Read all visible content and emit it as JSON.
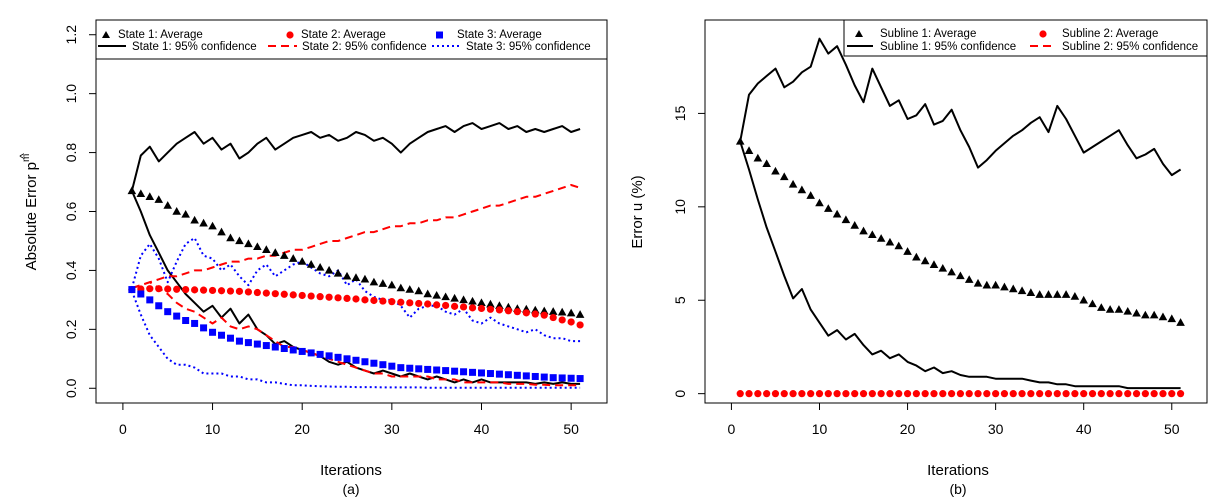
{
  "chart_data": [
    {
      "type": "line",
      "id": "a",
      "caption": "(a)",
      "xlabel": "Iterations",
      "ylabel": "Absolute Error p^m",
      "ylabel_base": "Absolute Error p",
      "ylabel_accent": "^",
      "ylabel_sup": "m",
      "xlim": [
        -3,
        54
      ],
      "ylim": [
        -0.05,
        1.25
      ],
      "xticks": [
        0,
        10,
        20,
        30,
        40,
        50
      ],
      "yticks": [
        0.0,
        0.2,
        0.4,
        0.6,
        0.8,
        1.0,
        1.2
      ],
      "ytick_labels": [
        "0.0",
        "0.2",
        "0.4",
        "0.6",
        "0.8",
        "1.0",
        "1.2"
      ],
      "x": [
        1,
        2,
        3,
        4,
        5,
        6,
        7,
        8,
        9,
        10,
        11,
        12,
        13,
        14,
        15,
        16,
        17,
        18,
        19,
        20,
        21,
        22,
        23,
        24,
        25,
        26,
        27,
        28,
        29,
        30,
        31,
        32,
        33,
        34,
        35,
        36,
        37,
        38,
        39,
        40,
        41,
        42,
        43,
        44,
        45,
        46,
        47,
        48,
        49,
        50,
        51
      ],
      "legend": {
        "placement": "top",
        "columns": 3,
        "entries": [
          {
            "label": "State 1: Average",
            "color": "#000000",
            "kind": "marker",
            "marker": "triangle"
          },
          {
            "label": "State 2: Average",
            "color": "#ff0000",
            "kind": "marker",
            "marker": "circle"
          },
          {
            "label": "State 3: Average",
            "color": "#0000ff",
            "kind": "marker",
            "marker": "square"
          },
          {
            "label": "State 1: 95% confidence",
            "color": "#000000",
            "kind": "line",
            "dash": "solid"
          },
          {
            "label": "State 2: 95% confidence",
            "color": "#ff0000",
            "kind": "line",
            "dash": "dashed"
          },
          {
            "label": "State 3: 95% confidence",
            "color": "#0000ff",
            "kind": "line",
            "dash": "dotted"
          }
        ]
      },
      "series": [
        {
          "name": "State 1: Average",
          "color": "#000000",
          "kind": "marker",
          "marker": "triangle",
          "values": [
            0.67,
            0.66,
            0.65,
            0.64,
            0.62,
            0.6,
            0.59,
            0.57,
            0.56,
            0.55,
            0.53,
            0.51,
            0.5,
            0.49,
            0.48,
            0.47,
            0.46,
            0.45,
            0.44,
            0.43,
            0.42,
            0.41,
            0.4,
            0.39,
            0.38,
            0.375,
            0.37,
            0.36,
            0.355,
            0.35,
            0.34,
            0.335,
            0.33,
            0.32,
            0.315,
            0.31,
            0.305,
            0.3,
            0.295,
            0.29,
            0.285,
            0.28,
            0.275,
            0.27,
            0.268,
            0.265,
            0.262,
            0.26,
            0.258,
            0.255,
            0.25
          ]
        },
        {
          "name": "State 2: Average",
          "color": "#ff0000",
          "kind": "marker",
          "marker": "circle",
          "values": [
            0.335,
            0.337,
            0.338,
            0.338,
            0.337,
            0.336,
            0.335,
            0.334,
            0.333,
            0.332,
            0.331,
            0.33,
            0.329,
            0.327,
            0.325,
            0.323,
            0.321,
            0.319,
            0.317,
            0.315,
            0.313,
            0.311,
            0.309,
            0.307,
            0.305,
            0.303,
            0.3,
            0.298,
            0.296,
            0.294,
            0.292,
            0.29,
            0.288,
            0.286,
            0.283,
            0.281,
            0.278,
            0.276,
            0.273,
            0.271,
            0.268,
            0.266,
            0.263,
            0.26,
            0.256,
            0.252,
            0.248,
            0.24,
            0.232,
            0.225,
            0.215
          ]
        },
        {
          "name": "State 3: Average",
          "color": "#0000ff",
          "kind": "marker",
          "marker": "square",
          "values": [
            0.335,
            0.32,
            0.3,
            0.28,
            0.26,
            0.245,
            0.23,
            0.22,
            0.205,
            0.19,
            0.18,
            0.17,
            0.16,
            0.155,
            0.15,
            0.145,
            0.14,
            0.135,
            0.13,
            0.125,
            0.12,
            0.115,
            0.11,
            0.105,
            0.1,
            0.095,
            0.09,
            0.085,
            0.08,
            0.075,
            0.07,
            0.068,
            0.066,
            0.064,
            0.062,
            0.06,
            0.058,
            0.056,
            0.054,
            0.052,
            0.05,
            0.048,
            0.046,
            0.044,
            0.042,
            0.04,
            0.038,
            0.036,
            0.035,
            0.034,
            0.033
          ]
        },
        {
          "name": "State 1: 95% confidence upper",
          "color": "#000000",
          "kind": "line",
          "dash": "solid",
          "values": [
            0.67,
            0.79,
            0.82,
            0.77,
            0.8,
            0.83,
            0.85,
            0.87,
            0.83,
            0.85,
            0.81,
            0.83,
            0.78,
            0.8,
            0.83,
            0.85,
            0.81,
            0.83,
            0.85,
            0.86,
            0.87,
            0.85,
            0.86,
            0.84,
            0.85,
            0.87,
            0.86,
            0.84,
            0.85,
            0.83,
            0.8,
            0.83,
            0.85,
            0.87,
            0.88,
            0.89,
            0.87,
            0.89,
            0.9,
            0.88,
            0.89,
            0.9,
            0.88,
            0.89,
            0.87,
            0.88,
            0.87,
            0.88,
            0.89,
            0.87,
            0.88
          ]
        },
        {
          "name": "State 1: 95% confidence lower",
          "color": "#000000",
          "kind": "line",
          "dash": "solid",
          "values": [
            0.67,
            0.6,
            0.52,
            0.46,
            0.4,
            0.36,
            0.32,
            0.29,
            0.26,
            0.28,
            0.24,
            0.27,
            0.22,
            0.25,
            0.2,
            0.18,
            0.15,
            0.16,
            0.14,
            0.13,
            0.12,
            0.11,
            0.09,
            0.08,
            0.09,
            0.07,
            0.06,
            0.05,
            0.06,
            0.05,
            0.04,
            0.05,
            0.04,
            0.03,
            0.04,
            0.03,
            0.02,
            0.03,
            0.02,
            0.03,
            0.02,
            0.02,
            0.02,
            0.02,
            0.02,
            0.015,
            0.02,
            0.015,
            0.02,
            0.015,
            0.015
          ]
        },
        {
          "name": "State 2: 95% confidence upper",
          "color": "#ff0000",
          "kind": "line",
          "dash": "dashed",
          "values": [
            0.34,
            0.35,
            0.36,
            0.37,
            0.38,
            0.38,
            0.39,
            0.4,
            0.4,
            0.41,
            0.42,
            0.43,
            0.43,
            0.44,
            0.44,
            0.45,
            0.45,
            0.46,
            0.47,
            0.47,
            0.48,
            0.49,
            0.5,
            0.5,
            0.51,
            0.52,
            0.53,
            0.53,
            0.54,
            0.55,
            0.55,
            0.56,
            0.56,
            0.57,
            0.57,
            0.58,
            0.58,
            0.59,
            0.6,
            0.61,
            0.62,
            0.62,
            0.63,
            0.64,
            0.65,
            0.65,
            0.66,
            0.67,
            0.68,
            0.69,
            0.68
          ]
        },
        {
          "name": "State 2: 95% confidence lower",
          "color": "#ff0000",
          "kind": "line",
          "dash": "dashed",
          "values": [
            0.34,
            0.35,
            0.36,
            0.34,
            0.32,
            0.29,
            0.27,
            0.26,
            0.24,
            0.22,
            0.24,
            0.21,
            0.2,
            0.21,
            0.2,
            0.18,
            0.16,
            0.14,
            0.14,
            0.13,
            0.12,
            0.11,
            0.1,
            0.09,
            0.08,
            0.07,
            0.06,
            0.05,
            0.05,
            0.04,
            0.04,
            0.04,
            0.04,
            0.04,
            0.03,
            0.03,
            0.03,
            0.02,
            0.02,
            0.02,
            0.02,
            0.02,
            0.015,
            0.015,
            0.015,
            0.012,
            0.012,
            0.01,
            0.01,
            0.01,
            0.01
          ]
        },
        {
          "name": "State 3: 95% confidence upper",
          "color": "#0000ff",
          "kind": "line",
          "dash": "dotted",
          "values": [
            0.34,
            0.45,
            0.49,
            0.44,
            0.36,
            0.43,
            0.49,
            0.51,
            0.45,
            0.44,
            0.4,
            0.42,
            0.38,
            0.35,
            0.4,
            0.42,
            0.38,
            0.4,
            0.42,
            0.43,
            0.41,
            0.39,
            0.38,
            0.4,
            0.35,
            0.37,
            0.33,
            0.31,
            0.3,
            0.3,
            0.28,
            0.24,
            0.27,
            0.28,
            0.28,
            0.26,
            0.25,
            0.27,
            0.23,
            0.22,
            0.24,
            0.22,
            0.21,
            0.2,
            0.19,
            0.2,
            0.18,
            0.17,
            0.17,
            0.16,
            0.16
          ]
        },
        {
          "name": "State 3: 95% confidence lower",
          "color": "#0000ff",
          "kind": "line",
          "dash": "dotted",
          "values": [
            0.33,
            0.25,
            0.18,
            0.14,
            0.1,
            0.08,
            0.08,
            0.07,
            0.05,
            0.05,
            0.05,
            0.04,
            0.04,
            0.03,
            0.03,
            0.02,
            0.02,
            0.015,
            0.01,
            0.01,
            0.008,
            0.007,
            0.006,
            0.005,
            0.005,
            0.004,
            0.004,
            0.004,
            0.003,
            0.003,
            0.003,
            0.003,
            0.003,
            0.002,
            0.002,
            0.002,
            0.002,
            0.002,
            0.002,
            0.002,
            0.002,
            0.002,
            0.002,
            0.002,
            0.002,
            0.002,
            0.002,
            0.002,
            0.002,
            0.002,
            0.002
          ]
        }
      ]
    },
    {
      "type": "line",
      "id": "b",
      "caption": "(b)",
      "xlabel": "Iterations",
      "ylabel": "Error u (%)",
      "xlim": [
        -3,
        54
      ],
      "ylim": [
        -0.5,
        20
      ],
      "xticks": [
        0,
        10,
        20,
        30,
        40,
        50
      ],
      "yticks": [
        0,
        5,
        10,
        15
      ],
      "ytick_labels": [
        "0",
        "5",
        "10",
        "15"
      ],
      "x": [
        1,
        2,
        3,
        4,
        5,
        6,
        7,
        8,
        9,
        10,
        11,
        12,
        13,
        14,
        15,
        16,
        17,
        18,
        19,
        20,
        21,
        22,
        23,
        24,
        25,
        26,
        27,
        28,
        29,
        30,
        31,
        32,
        33,
        34,
        35,
        36,
        37,
        38,
        39,
        40,
        41,
        42,
        43,
        44,
        45,
        46,
        47,
        48,
        49,
        50,
        51
      ],
      "legend": {
        "placement": "top-right",
        "columns": 2,
        "entries": [
          {
            "label": "Subline 1: Average",
            "color": "#000000",
            "kind": "marker",
            "marker": "triangle"
          },
          {
            "label": "Subline 2: Average",
            "color": "#ff0000",
            "kind": "marker",
            "marker": "circle"
          },
          {
            "label": "Subline 1: 95% confidence",
            "color": "#000000",
            "kind": "line",
            "dash": "solid"
          },
          {
            "label": "Subline 2: 95% confidence",
            "color": "#ff0000",
            "kind": "line",
            "dash": "dashed"
          }
        ]
      },
      "series": [
        {
          "name": "Subline 1: Average",
          "color": "#000000",
          "kind": "marker",
          "marker": "triangle",
          "values": [
            13.5,
            13.0,
            12.6,
            12.3,
            11.9,
            11.6,
            11.2,
            10.9,
            10.6,
            10.2,
            9.9,
            9.6,
            9.3,
            9.0,
            8.7,
            8.5,
            8.3,
            8.1,
            7.9,
            7.6,
            7.3,
            7.1,
            6.9,
            6.7,
            6.5,
            6.3,
            6.1,
            5.9,
            5.8,
            5.8,
            5.7,
            5.6,
            5.5,
            5.4,
            5.3,
            5.3,
            5.3,
            5.3,
            5.2,
            5.0,
            4.8,
            4.6,
            4.5,
            4.5,
            4.4,
            4.3,
            4.2,
            4.2,
            4.1,
            4.0,
            3.8
          ]
        },
        {
          "name": "Subline 2: Average",
          "color": "#ff0000",
          "kind": "marker",
          "marker": "circle",
          "values": [
            0,
            0,
            0,
            0,
            0,
            0,
            0,
            0,
            0,
            0,
            0,
            0,
            0,
            0,
            0,
            0,
            0,
            0,
            0,
            0,
            0,
            0,
            0,
            0,
            0,
            0,
            0,
            0,
            0,
            0,
            0,
            0,
            0,
            0,
            0,
            0,
            0,
            0,
            0,
            0,
            0,
            0,
            0,
            0,
            0,
            0,
            0,
            0,
            0,
            0,
            0
          ]
        },
        {
          "name": "Subline 1: 95% confidence upper",
          "color": "#000000",
          "kind": "line",
          "dash": "solid",
          "values": [
            13.5,
            16.0,
            16.6,
            17.0,
            17.4,
            16.4,
            16.7,
            17.2,
            17.5,
            19.0,
            18.2,
            18.6,
            17.6,
            16.5,
            15.6,
            17.4,
            16.4,
            15.4,
            15.7,
            14.7,
            14.9,
            15.5,
            14.4,
            14.6,
            15.2,
            14.1,
            13.2,
            12.1,
            12.5,
            13.0,
            13.4,
            13.8,
            14.1,
            14.5,
            14.8,
            14.0,
            15.4,
            14.7,
            13.8,
            12.9,
            13.2,
            13.5,
            13.8,
            14.1,
            13.3,
            12.6,
            12.8,
            13.1,
            12.3,
            11.7,
            12.0
          ]
        },
        {
          "name": "Subline 1: 95% confidence lower",
          "color": "#000000",
          "kind": "line",
          "dash": "solid",
          "values": [
            13.5,
            12.0,
            10.4,
            8.9,
            7.6,
            6.3,
            5.1,
            5.6,
            4.5,
            3.8,
            3.1,
            3.4,
            2.9,
            3.2,
            2.6,
            2.1,
            2.3,
            1.9,
            2.1,
            1.7,
            1.5,
            1.2,
            1.4,
            1.1,
            1.2,
            1.0,
            0.9,
            0.9,
            0.9,
            0.8,
            0.8,
            0.8,
            0.8,
            0.7,
            0.6,
            0.6,
            0.5,
            0.5,
            0.4,
            0.4,
            0.4,
            0.4,
            0.4,
            0.4,
            0.3,
            0.3,
            0.3,
            0.3,
            0.3,
            0.3,
            0.3
          ]
        }
      ]
    }
  ]
}
